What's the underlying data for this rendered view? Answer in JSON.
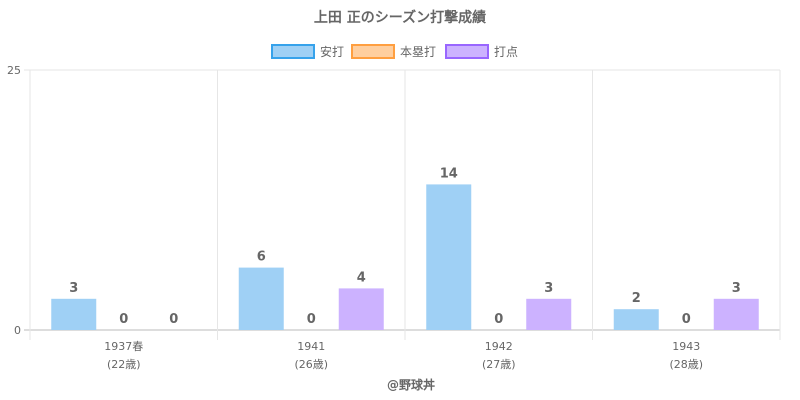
{
  "chart_data": {
    "type": "bar",
    "title": "上田 正のシーズン打撃成績",
    "categories": [
      "1937春",
      "1941",
      "1942",
      "1943"
    ],
    "sublabels": [
      "(22歳)",
      "(26歳)",
      "(27歳)",
      "(28歳)"
    ],
    "series": [
      {
        "name": "安打",
        "values": [
          3,
          6,
          14,
          2
        ],
        "color": "#9fd0f5",
        "border": "#36a2eb"
      },
      {
        "name": "本塁打",
        "values": [
          0,
          0,
          0,
          0
        ],
        "color": "#ffcf9f",
        "border": "#ff9f40"
      },
      {
        "name": "打点",
        "values": [
          0,
          4,
          3,
          3
        ],
        "color": "#ccb2ff",
        "border": "#9966ff"
      }
    ],
    "ylim": [
      0,
      25
    ],
    "yticks": [
      0,
      25
    ],
    "grid": true,
    "legend_position": "top"
  },
  "credit": "@野球丼"
}
